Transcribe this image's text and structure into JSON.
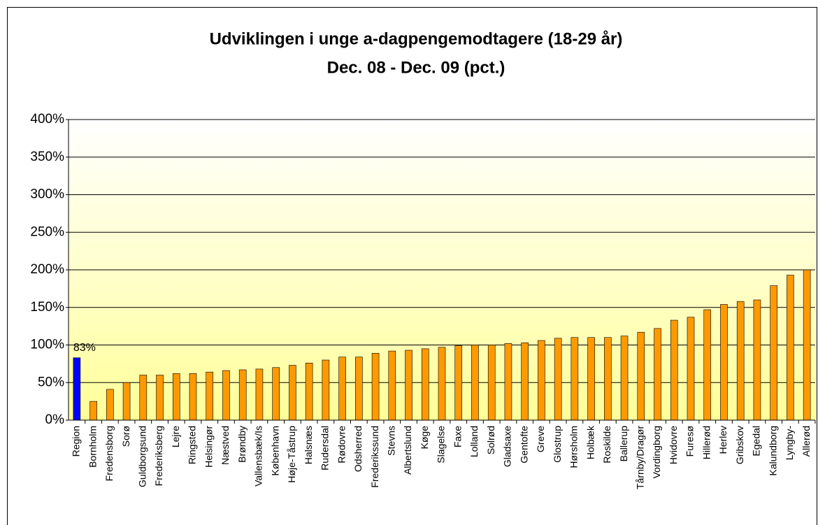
{
  "chart_data": {
    "type": "bar",
    "title": "Udviklingen i unge a-dagpengemodtagere (18-29 år)",
    "subtitle": "Dec. 08 - Dec. 09 (pct.)",
    "categories": [
      "Region",
      "Bornholm",
      "Fredensborg",
      "Sorø",
      "Guldborgsund",
      "Frederiksberg",
      "Lejre",
      "Ringsted",
      "Helsingør",
      "Næstved",
      "Brøndby",
      "Vallensbæk/Is",
      "København",
      "Høje-Tåstrup",
      "Halsnæs",
      "Rudersdal",
      "Rødovre",
      "Odsherred",
      "Frederikssund",
      "Stevns",
      "Albertslund",
      "Køge",
      "Slagelse",
      "Faxe",
      "Lolland",
      "Solrød",
      "Gladsaxe",
      "Gentofte",
      "Greve",
      "Glostrup",
      "Hørsholm",
      "Holbæk",
      "Roskilde",
      "Ballerup",
      "Tårnby/Dragør",
      "Vordingborg",
      "Hvidovre",
      "Furesø",
      "Hillerød",
      "Herlev",
      "Gribskov",
      "Egedal",
      "Kalundborg",
      "Lyngby-",
      "Allerød"
    ],
    "values": [
      83,
      25,
      41,
      50,
      60,
      60,
      62,
      62,
      64,
      66,
      67,
      68,
      70,
      73,
      76,
      80,
      84,
      84,
      89,
      92,
      93,
      95,
      97,
      99,
      100,
      100,
      102,
      103,
      106,
      109,
      110,
      110,
      110,
      112,
      117,
      122,
      133,
      137,
      147,
      154,
      158,
      160,
      179,
      193,
      200
    ],
    "value_labels": [
      "83%",
      null,
      null,
      null,
      null,
      null,
      null,
      null,
      null,
      null,
      null,
      null,
      null,
      null,
      null,
      null,
      null,
      null,
      null,
      null,
      null,
      null,
      null,
      null,
      null,
      null,
      null,
      null,
      null,
      null,
      null,
      null,
      null,
      null,
      null,
      null,
      null,
      null,
      null,
      null,
      null,
      null,
      null,
      null,
      null
    ],
    "colors": [
      "#0000ff",
      "#ff9900",
      "#ff9900",
      "#ff9900",
      "#ff9900",
      "#ff9900",
      "#ff9900",
      "#ff9900",
      "#ff9900",
      "#ff9900",
      "#ff9900",
      "#ff9900",
      "#ff9900",
      "#ff9900",
      "#ff9900",
      "#ff9900",
      "#ff9900",
      "#ff9900",
      "#ff9900",
      "#ff9900",
      "#ff9900",
      "#ff9900",
      "#ff9900",
      "#ff9900",
      "#ff9900",
      "#ff9900",
      "#ff9900",
      "#ff9900",
      "#ff9900",
      "#ff9900",
      "#ff9900",
      "#ff9900",
      "#ff9900",
      "#ff9900",
      "#ff9900",
      "#ff9900",
      "#ff9900",
      "#ff9900",
      "#ff9900",
      "#ff9900",
      "#ff9900",
      "#ff9900",
      "#ff9900",
      "#ff9900",
      "#ff9900"
    ],
    "ylim": [
      0,
      400
    ],
    "yticks": [
      {
        "value": 0,
        "label": "0%"
      },
      {
        "value": 50,
        "label": "50%"
      },
      {
        "value": 100,
        "label": "100%"
      },
      {
        "value": 150,
        "label": "150%"
      },
      {
        "value": 200,
        "label": "200%"
      },
      {
        "value": 250,
        "label": "250%"
      },
      {
        "value": 300,
        "label": "300%"
      },
      {
        "value": 350,
        "label": "350%"
      },
      {
        "value": 400,
        "label": "400%"
      }
    ],
    "grid": true
  }
}
